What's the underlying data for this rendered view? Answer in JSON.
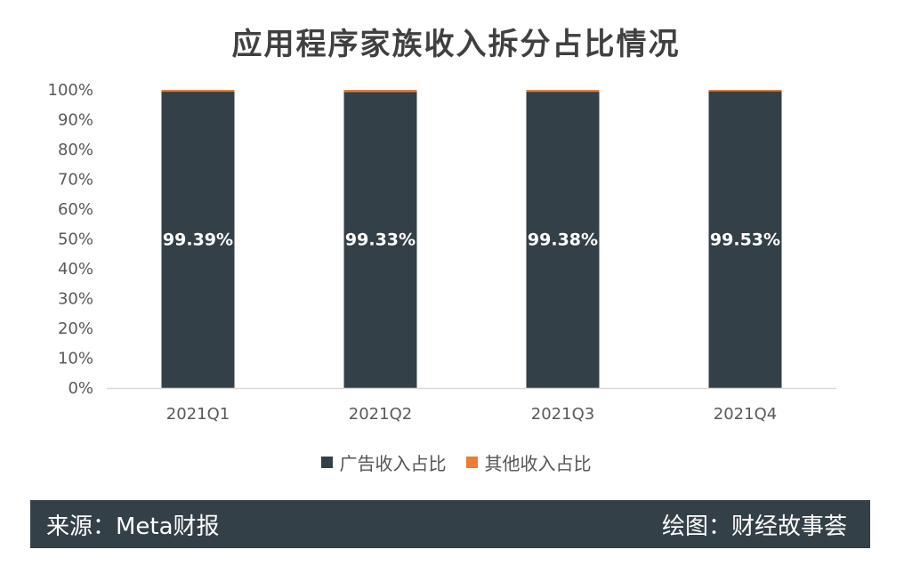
{
  "chart_data": {
    "type": "bar",
    "stacked": true,
    "title": "应用程序家族收入拆分占比情况",
    "categories": [
      "2021Q1",
      "2021Q2",
      "2021Q3",
      "2021Q4"
    ],
    "series": [
      {
        "name": "广告收入占比",
        "values": [
          99.39,
          99.33,
          99.38,
          99.53
        ],
        "color": "#344048"
      },
      {
        "name": "其他收入占比",
        "values": [
          0.61,
          0.67,
          0.62,
          0.47
        ],
        "color": "#ED7D31"
      }
    ],
    "data_labels": [
      "99.39%",
      "99.33%",
      "99.38%",
      "99.53%"
    ],
    "y_ticks": [
      "0%",
      "10%",
      "20%",
      "30%",
      "40%",
      "50%",
      "60%",
      "70%",
      "80%",
      "90%",
      "100%"
    ],
    "ylim": [
      0,
      100
    ],
    "grid": false,
    "legend_position": "bottom"
  },
  "footer": {
    "source": "来源：Meta财报",
    "credit": "绘图：财经故事荟"
  }
}
